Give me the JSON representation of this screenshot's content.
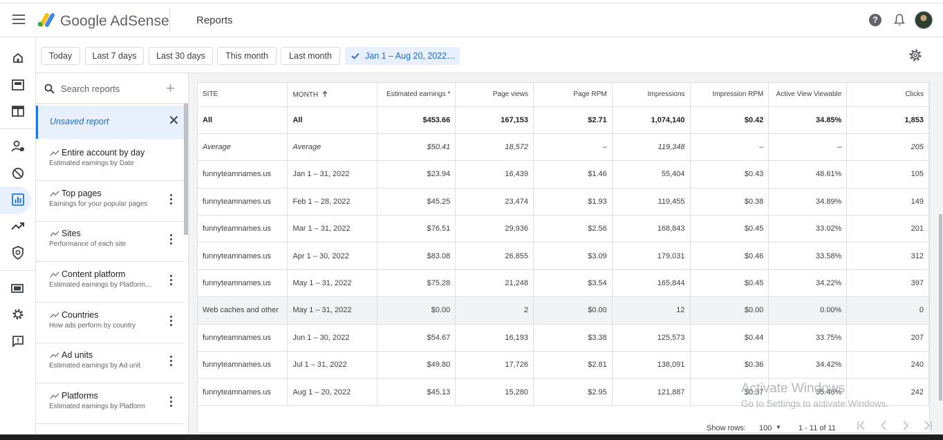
{
  "topbar": {
    "brand": "Google AdSense",
    "page_title": "Reports"
  },
  "nav": {
    "icons": [
      "home-icon",
      "ads-icon",
      "sites-icon",
      "account-icon",
      "blocking-icon",
      "reports-icon",
      "optimization-icon",
      "policy-icon",
      "payments-icon",
      "settings-icon",
      "feedback-icon"
    ],
    "active": "reports-icon",
    "accent": "#1a73e8"
  },
  "chips": {
    "today": "Today",
    "last7": "Last 7 days",
    "last30": "Last 30 days",
    "this_month": "This month",
    "last_month": "Last month",
    "custom": "Jan 1 – Aug 20, 2022…"
  },
  "side": {
    "search_placeholder": "Search reports",
    "unsaved": "Unsaved report",
    "reports": [
      {
        "title": "Entire account by day",
        "sub": "Estimated earnings by Date"
      },
      {
        "title": "Top pages",
        "sub": "Earnings for your popular pages"
      },
      {
        "title": "Sites",
        "sub": "Performance of each site"
      },
      {
        "title": "Content platform",
        "sub": "Estimated earnings by Platform…"
      },
      {
        "title": "Countries",
        "sub": "How ads perform by country"
      },
      {
        "title": "Ad units",
        "sub": "Estimated earnings by Ad unit"
      },
      {
        "title": "Platforms",
        "sub": "Estimated earnings by Platform"
      }
    ]
  },
  "table": {
    "headers": [
      "SITE",
      "MONTH",
      "Estimated earnings *",
      "Page views",
      "Page RPM",
      "Impressions",
      "Impression RPM",
      "Active View Viewable",
      "Clicks"
    ],
    "sort_icon": "arrow-up-icon",
    "rows": [
      [
        "All",
        "All",
        "$453.66",
        "167,153",
        "$2.71",
        "1,074,140",
        "$0.42",
        "34.85%",
        "1,853"
      ],
      [
        "Average",
        "Average",
        "$50.41",
        "18,572",
        "–",
        "119,348",
        "–",
        "–",
        "205"
      ],
      [
        "funnyteamnames.us",
        "Jan 1 – 31, 2022",
        "$23.94",
        "16,439",
        "$1.46",
        "55,404",
        "$0.43",
        "48.61%",
        "105"
      ],
      [
        "funnyteamnames.us",
        "Feb 1 – 28, 2022",
        "$45.25",
        "23,474",
        "$1.93",
        "119,455",
        "$0.38",
        "34.89%",
        "149"
      ],
      [
        "funnyteamnames.us",
        "Mar 1 – 31, 2022",
        "$76.51",
        "29,936",
        "$2.56",
        "168,843",
        "$0.45",
        "33.02%",
        "201"
      ],
      [
        "funnyteamnames.us",
        "Apr 1 – 30, 2022",
        "$83.08",
        "26,855",
        "$3.09",
        "179,031",
        "$0.46",
        "33.58%",
        "312"
      ],
      [
        "funnyteamnames.us",
        "May 1 – 31, 2022",
        "$75.28",
        "21,248",
        "$3.54",
        "165,844",
        "$0.45",
        "34.22%",
        "397"
      ],
      [
        "Web caches and other",
        "May 1 – 31, 2022",
        "$0.00",
        "2",
        "$0.00",
        "12",
        "$0.00",
        "0.00%",
        "0"
      ],
      [
        "funnyteamnames.us",
        "Jun 1 – 30, 2022",
        "$54.67",
        "16,193",
        "$3.38",
        "125,573",
        "$0.44",
        "33.75%",
        "207"
      ],
      [
        "funnyteamnames.us",
        "Jul 1 – 31, 2022",
        "$49.80",
        "17,726",
        "$2.81",
        "138,091",
        "$0.36",
        "34.42%",
        "240"
      ],
      [
        "funnyteamnames.us",
        "Aug 1 – 20, 2022",
        "$45.13",
        "15,280",
        "$2.95",
        "121,887",
        "$0.37",
        "35.46%",
        "242"
      ]
    ]
  },
  "footer": {
    "rows_label": "Show rows:",
    "rows_value": "100",
    "page_range": "1 - 11 of 11"
  },
  "watermark": {
    "title": "Activate Windows",
    "sub": "Go to Settings to activate Windows."
  }
}
